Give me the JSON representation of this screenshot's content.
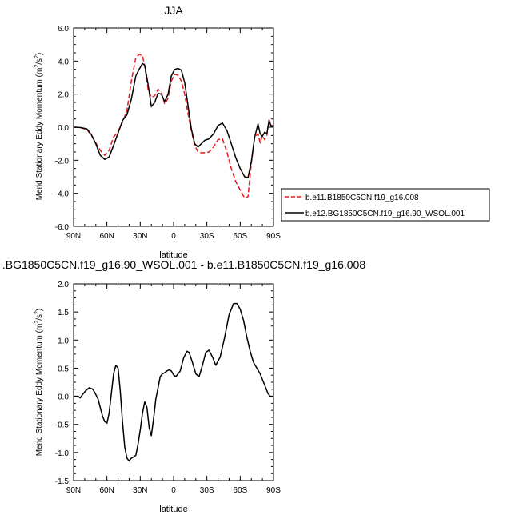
{
  "chart_data": [
    {
      "type": "line",
      "title": "JJA",
      "xlabel": "latitude",
      "ylabel": "Merid Stationary Eddy Momentum (m",
      "ylabel_unit_exp1": "2",
      "ylabel_unit_mid": "/s",
      "ylabel_unit_exp2": "2",
      "ylabel_unit_end": ")",
      "xlim": [
        90,
        -90
      ],
      "ylim": [
        -6,
        6
      ],
      "xticks": [
        90,
        60,
        30,
        0,
        -30,
        -60,
        -90
      ],
      "xtick_labels": [
        "90N",
        "60N",
        "30N",
        "0",
        "30S",
        "60S",
        "90S"
      ],
      "yticks": [
        -6,
        -4,
        -2,
        0,
        2,
        4,
        6
      ],
      "ytick_labels": [
        "-6.0",
        "-4.0",
        "-2.0",
        "0.0",
        "2.0",
        "4.0",
        "6.0"
      ],
      "legend": {
        "placement": "right-outside",
        "entries": [
          "b.e11.B1850C5CN.f19_g16.008",
          "b.e12.BG1850C5CN.f19_g16.90_WSOL.001"
        ]
      },
      "series": [
        {
          "name": "b.e11.B1850C5CN.f19_g16.008",
          "color": "#e41a1c",
          "style": "dashed",
          "x": [
            90,
            84,
            78,
            74,
            70,
            66,
            62,
            58,
            54,
            50,
            46,
            42,
            38,
            34,
            31,
            28,
            26,
            23,
            20,
            17,
            14,
            11,
            8,
            5,
            2,
            -1,
            -4,
            -7,
            -10,
            -13,
            -16,
            -19,
            -22,
            -25,
            -28,
            -32,
            -36,
            -40,
            -44,
            -48,
            -52,
            -56,
            -60,
            -64,
            -67,
            -70,
            -73,
            -76,
            -78,
            -80,
            -82,
            -84,
            -86,
            -88,
            -90
          ],
          "y": [
            0.0,
            -0.02,
            -0.15,
            -0.5,
            -0.95,
            -1.4,
            -1.7,
            -1.4,
            -0.6,
            -0.25,
            0.3,
            1.0,
            2.8,
            4.2,
            4.4,
            4.35,
            3.7,
            2.3,
            1.8,
            1.9,
            2.3,
            2.1,
            1.4,
            1.75,
            2.8,
            3.2,
            3.15,
            2.8,
            2.0,
            0.8,
            -0.2,
            -1.1,
            -1.5,
            -1.55,
            -1.55,
            -1.5,
            -1.2,
            -0.75,
            -0.7,
            -1.5,
            -2.5,
            -3.3,
            -3.8,
            -4.3,
            -4.2,
            -2.2,
            -0.6,
            -0.4,
            -0.95,
            -0.5,
            -0.75,
            -0.5,
            0.45,
            0.1,
            0.1
          ]
        },
        {
          "name": "b.e12.BG1850C5CN.f19_g16.90_WSOL.001",
          "color": "#000000",
          "style": "solid",
          "x": [
            90,
            84,
            78,
            74,
            70,
            66,
            62,
            58,
            54,
            50,
            46,
            42,
            38,
            34,
            31,
            28,
            26,
            23,
            20,
            17,
            14,
            11,
            8,
            5,
            2,
            -1,
            -4,
            -7,
            -10,
            -13,
            -16,
            -19,
            -22,
            -25,
            -28,
            -32,
            -36,
            -40,
            -44,
            -48,
            -52,
            -56,
            -60,
            -64,
            -67,
            -70,
            -73,
            -76,
            -78,
            -80,
            -82,
            -84,
            -86,
            -88,
            -90
          ],
          "y": [
            0.0,
            -0.02,
            -0.1,
            -0.45,
            -1.0,
            -1.7,
            -1.95,
            -1.8,
            -1.1,
            -0.35,
            0.4,
            0.75,
            1.7,
            3.1,
            3.5,
            3.85,
            3.75,
            2.6,
            1.25,
            1.5,
            2.05,
            2.0,
            1.55,
            2.0,
            3.1,
            3.5,
            3.55,
            3.45,
            2.7,
            1.3,
            -0.1,
            -1.0,
            -1.2,
            -1.0,
            -0.8,
            -0.7,
            -0.4,
            0.1,
            0.25,
            -0.2,
            -1.0,
            -1.85,
            -2.5,
            -3.0,
            -3.05,
            -2.1,
            -0.6,
            0.2,
            -0.4,
            -0.55,
            -0.3,
            -0.4,
            0.4,
            0.05,
            0.05
          ]
        }
      ]
    },
    {
      "type": "line",
      "title": ".BG1850C5CN.f19_g16.90_WSOL.001 - b.e11.B1850C5CN.f19_g16.008",
      "xlabel": "latitude",
      "ylabel": "Merid Stationary Eddy Momentum (m",
      "ylabel_unit_exp1": "2",
      "ylabel_unit_mid": "/s",
      "ylabel_unit_exp2": "2",
      "ylabel_unit_end": ")",
      "xlim": [
        90,
        -90
      ],
      "ylim": [
        -1.5,
        2.0
      ],
      "xticks": [
        90,
        60,
        30,
        0,
        -30,
        -60,
        -90
      ],
      "xtick_labels": [
        "90N",
        "60N",
        "30N",
        "0",
        "30S",
        "60S",
        "90S"
      ],
      "yticks": [
        -1.5,
        -1.0,
        -0.5,
        0.0,
        0.5,
        1.0,
        1.5,
        2.0
      ],
      "ytick_labels": [
        "-1.5",
        "-1.0",
        "-0.5",
        "0.0",
        "0.5",
        "1.0",
        "1.5",
        "2.0"
      ],
      "series": [
        {
          "color": "#000000",
          "style": "solid",
          "x": [
            90,
            86,
            84,
            82,
            79,
            76,
            73,
            71,
            68,
            66,
            64,
            62,
            60,
            58,
            56,
            54,
            52,
            50,
            48,
            46,
            44,
            42,
            40,
            38,
            36,
            34,
            32,
            30,
            28,
            26,
            24,
            22,
            20,
            18,
            16,
            14,
            12,
            10,
            8,
            6,
            4,
            2,
            0,
            -2,
            -4,
            -6,
            -9,
            -12,
            -14,
            -17,
            -20,
            -23,
            -26,
            -29,
            -32,
            -35,
            -38,
            -42,
            -46,
            -50,
            -54,
            -57,
            -60,
            -63,
            -66,
            -69,
            -72,
            -75,
            -78,
            -81,
            -83,
            -85,
            -87,
            -90
          ],
          "y": [
            0.0,
            0.0,
            -0.03,
            0.03,
            0.1,
            0.15,
            0.13,
            0.07,
            -0.05,
            -0.2,
            -0.35,
            -0.45,
            -0.48,
            -0.3,
            0.05,
            0.4,
            0.55,
            0.5,
            0.1,
            -0.45,
            -0.9,
            -1.1,
            -1.15,
            -1.1,
            -1.08,
            -1.05,
            -0.85,
            -0.6,
            -0.3,
            -0.1,
            -0.2,
            -0.55,
            -0.7,
            -0.4,
            -0.05,
            0.15,
            0.35,
            0.4,
            0.42,
            0.45,
            0.47,
            0.45,
            0.38,
            0.35,
            0.4,
            0.45,
            0.68,
            0.8,
            0.78,
            0.6,
            0.4,
            0.35,
            0.55,
            0.78,
            0.82,
            0.7,
            0.55,
            0.7,
            1.05,
            1.45,
            1.65,
            1.65,
            1.55,
            1.35,
            1.05,
            0.8,
            0.6,
            0.5,
            0.4,
            0.25,
            0.15,
            0.05,
            0.0,
            0.0
          ]
        }
      ]
    }
  ]
}
